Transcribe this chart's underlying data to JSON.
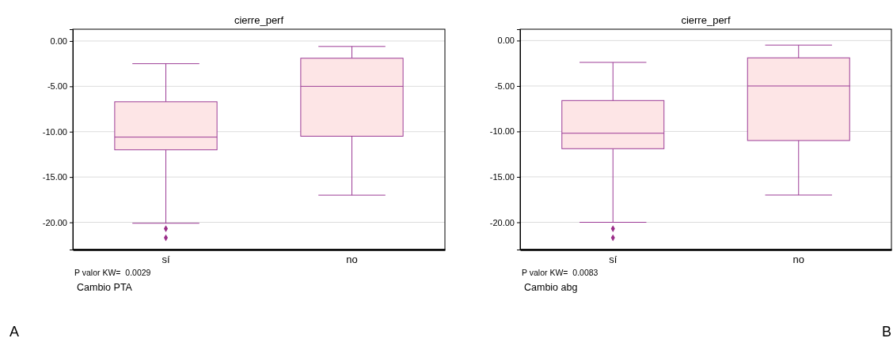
{
  "chart_data": [
    {
      "type": "box",
      "title": "cierre_perf",
      "categories": [
        "sí",
        "no"
      ],
      "color": "#9c3c96",
      "grid": "y",
      "ylim": [
        -23,
        1.3
      ],
      "yticks": [
        {
          "value": 0,
          "label": "0.00"
        },
        {
          "value": -5,
          "label": "-5.00"
        },
        {
          "value": -10,
          "label": "-10.00"
        },
        {
          "value": -15,
          "label": "-15.00"
        },
        {
          "value": -20,
          "label": "-20.00"
        }
      ],
      "boxes": [
        {
          "low": -20.1,
          "q1": -12.0,
          "median": -10.6,
          "q3": -6.7,
          "high": -2.5,
          "outliers": [
            -20.7,
            -21.7
          ]
        },
        {
          "low": -17.0,
          "q1": -10.5,
          "median": -5.0,
          "q3": -1.9,
          "high": -0.6
        }
      ],
      "annotations": [
        "P valor KW=  0.0029",
        "Cambio PTA",
        "A"
      ]
    },
    {
      "type": "box",
      "title": "cierre_perf",
      "categories": [
        "sí",
        "no"
      ],
      "color": "#9c3c96",
      "grid": "y",
      "ylim": [
        -23,
        1.25
      ],
      "yticks": [
        {
          "value": 0,
          "label": "0.00"
        },
        {
          "value": -5,
          "label": "-5.00"
        },
        {
          "value": -10,
          "label": "-10.00"
        },
        {
          "value": -15,
          "label": "-15.00"
        },
        {
          "value": -20,
          "label": "-20.00"
        }
      ],
      "boxes": [
        {
          "low": -20.0,
          "q1": -11.9,
          "median": -10.2,
          "q3": -6.6,
          "high": -2.4,
          "outliers": [
            -20.7,
            -21.7
          ]
        },
        {
          "low": -17.0,
          "q1": -11.0,
          "median": -5.0,
          "q3": -1.9,
          "high": -0.5
        }
      ],
      "annotations": [
        "P valor KW=  0.0083",
        "Cambio abg",
        "B"
      ]
    }
  ]
}
